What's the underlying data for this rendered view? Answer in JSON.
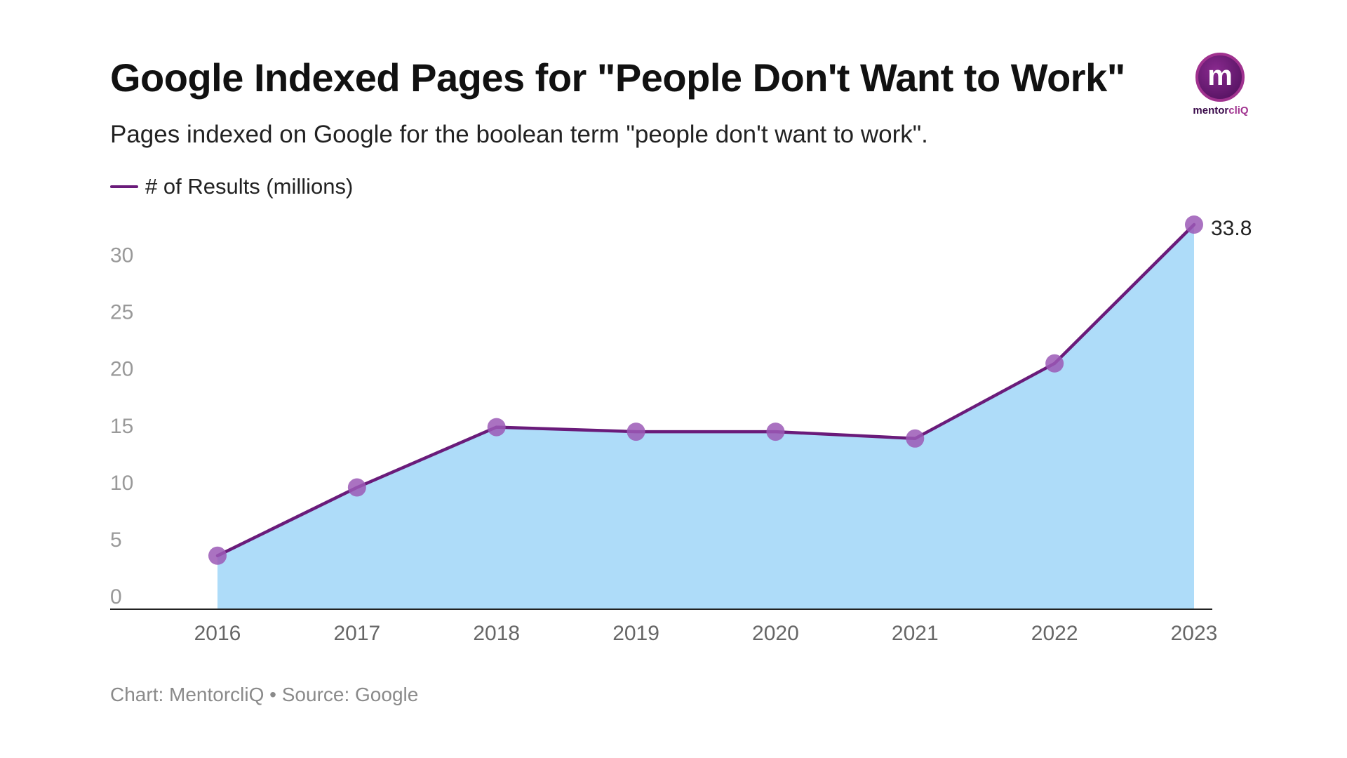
{
  "chart_data": {
    "type": "area",
    "title": "Google Indexed Pages for \"People Don't Want to Work\"",
    "subtitle": "Pages indexed on Google for the boolean term \"people don't want to work\".",
    "categories": [
      "2016",
      "2017",
      "2018",
      "2019",
      "2020",
      "2021",
      "2022",
      "2023"
    ],
    "series": [
      {
        "name": "# of Results (millions)",
        "values": [
          4.7,
          10.7,
          16.0,
          15.6,
          15.6,
          15.0,
          21.6,
          33.8
        ]
      }
    ],
    "data_labels": [
      {
        "index": 7,
        "text": "33.8"
      }
    ],
    "yticks": [
      "0",
      "5",
      "10",
      "15",
      "20",
      "25",
      "30"
    ],
    "ylim": [
      0,
      33.8
    ],
    "grid": false,
    "legend": "top-left",
    "colors": {
      "line": "#6a1b7a",
      "marker": "#9b59b6",
      "area": "#aedcf9"
    },
    "footer": "Chart: MentorcliQ • Source: Google"
  },
  "logo": {
    "letter": "m",
    "text_main": "mentor",
    "text_accent": "cliQ"
  }
}
